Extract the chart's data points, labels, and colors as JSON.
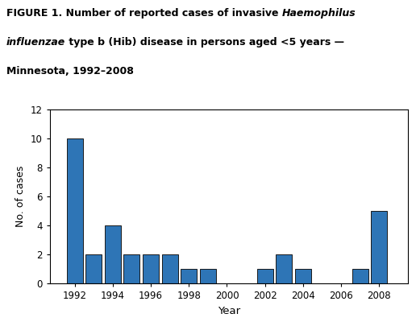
{
  "years": [
    1992,
    1993,
    1994,
    1995,
    1996,
    1997,
    1998,
    1999,
    2000,
    2001,
    2002,
    2003,
    2004,
    2005,
    2006,
    2007,
    2008
  ],
  "values": [
    10,
    2,
    4,
    2,
    2,
    2,
    1,
    1,
    0,
    0,
    1,
    2,
    1,
    0,
    0,
    1,
    5
  ],
  "bar_color": "#2e75b6",
  "bar_edge_color": "#1a1a1a",
  "xlabel": "Year",
  "ylabel": "No. of cases",
  "ylim": [
    0,
    12
  ],
  "yticks": [
    0,
    2,
    4,
    6,
    8,
    10,
    12
  ],
  "xticks": [
    1992,
    1994,
    1996,
    1998,
    2000,
    2002,
    2004,
    2006,
    2008
  ],
  "xlim": [
    1990.7,
    2009.5
  ],
  "bar_width": 0.85,
  "background_color": "#ffffff",
  "title_fontsize": 9.0,
  "axis_fontsize": 9.0,
  "tick_fontsize": 8.5
}
